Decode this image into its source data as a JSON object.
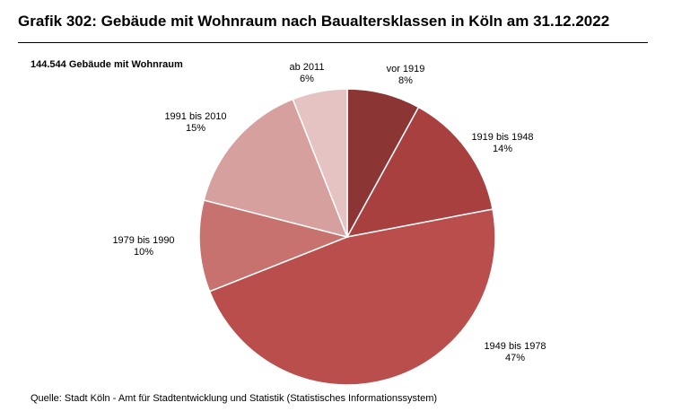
{
  "header": {
    "title": "Grafik 302: Gebäude mit Wohnraum nach Baualtersklassen in Köln am 31.12.2022"
  },
  "footer": {
    "source": "Quelle: Stadt Köln - Amt für Stadtentwicklung und Statistik (Statistisches Informationssystem)"
  },
  "chart_data": {
    "type": "pie",
    "subtitle": "144.544 Gebäude mit Wohnraum",
    "start_angle_deg": 0,
    "direction": "clockwise",
    "slices": [
      {
        "label": "vor 1919",
        "value": 8,
        "value_label": "8%",
        "color": "#8b3535"
      },
      {
        "label": "1919 bis 1948",
        "value": 14,
        "value_label": "14%",
        "color": "#a84040"
      },
      {
        "label": "1949 bis 1978",
        "value": 47,
        "value_label": "47%",
        "color": "#b94e4c"
      },
      {
        "label": "1979 bis 1990",
        "value": 10,
        "value_label": "10%",
        "color": "#c87270"
      },
      {
        "label": "1991 bis 2010",
        "value": 15,
        "value_label": "15%",
        "color": "#d6a09f"
      },
      {
        "label": "ab 2011",
        "value": 6,
        "value_label": "6%",
        "color": "#e6c3c3"
      }
    ]
  }
}
